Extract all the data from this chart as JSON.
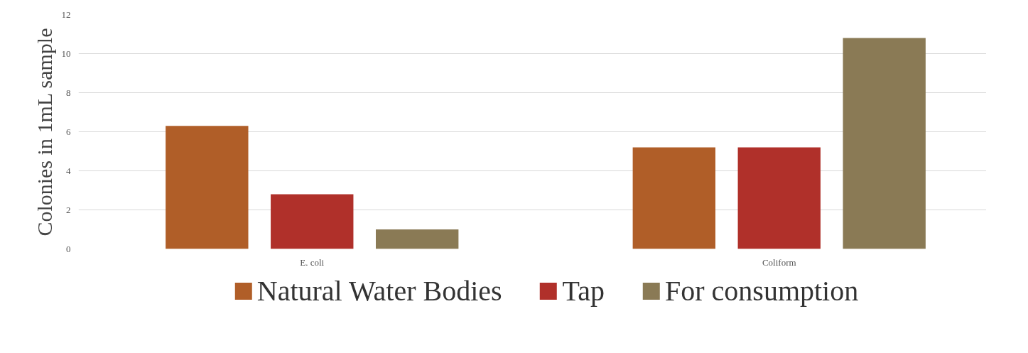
{
  "chart_data": {
    "type": "bar",
    "ylabel": "Colonies in 1mL sample",
    "categories": [
      "E. coli",
      "Coliform"
    ],
    "series": [
      {
        "name": "Natural Water Bodies",
        "color": "#b05e28",
        "values": [
          6.3,
          5.2
        ]
      },
      {
        "name": "Tap",
        "color": "#b0302a",
        "values": [
          2.8,
          5.2
        ]
      },
      {
        "name": "For consumption",
        "color": "#8a7a55",
        "values": [
          1.0,
          10.8
        ]
      }
    ],
    "ylim": [
      0,
      12
    ],
    "yticks": [
      0,
      2,
      4,
      6,
      8,
      10,
      12
    ],
    "grid": "y",
    "legend": "bottom"
  }
}
